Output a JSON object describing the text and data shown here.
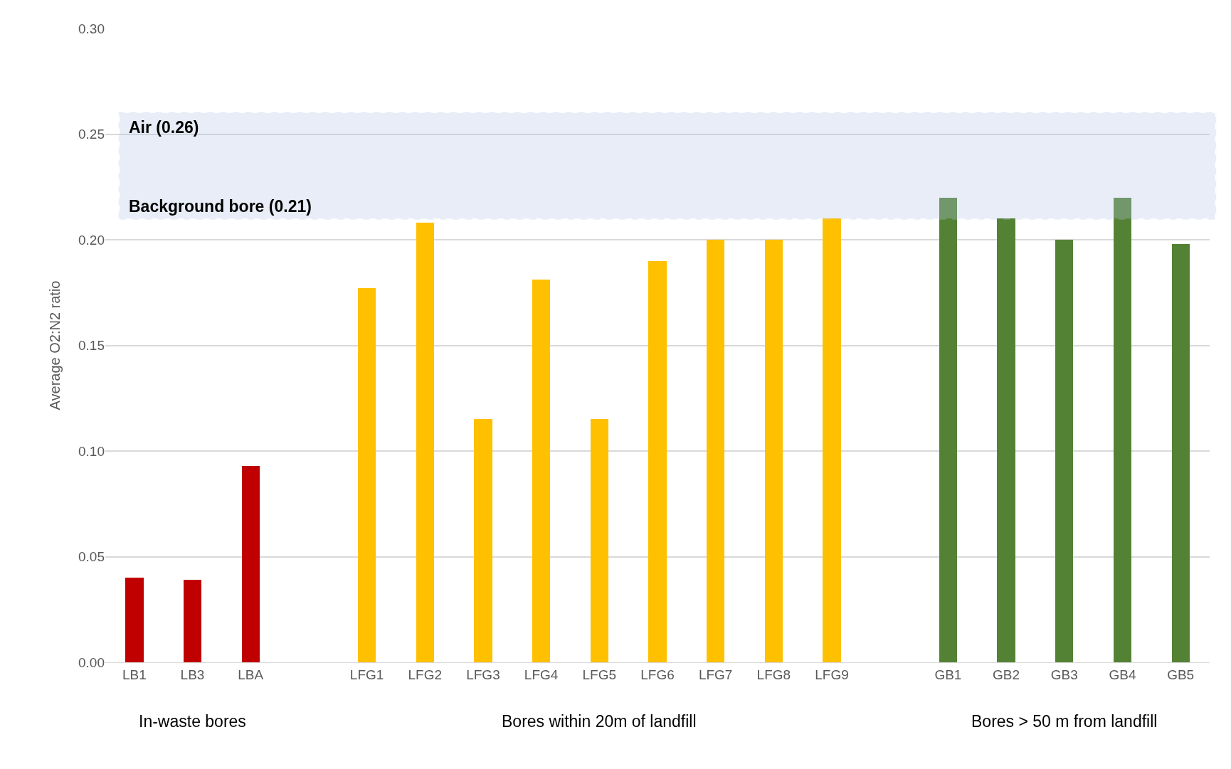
{
  "chart_data": {
    "type": "bar",
    "ylabel": "Average O2:N2 ratio",
    "categories": [
      "LB1",
      "LB3",
      "LBA",
      null,
      "LFG1",
      "LFG2",
      "LFG3",
      "LFG4",
      "LFG5",
      "LFG6",
      "LFG7",
      "LFG8",
      "LFG9",
      null,
      "GB1",
      "GB2",
      "GB3",
      "GB4",
      "GB5"
    ],
    "values": [
      0.04,
      0.039,
      0.093,
      null,
      0.177,
      0.208,
      0.115,
      0.181,
      0.115,
      0.19,
      0.2,
      0.2,
      0.21,
      null,
      0.22,
      0.21,
      0.2,
      0.22,
      0.198
    ],
    "colors": [
      "#c00000",
      "#c00000",
      "#c00000",
      null,
      "#ffc000",
      "#ffc000",
      "#ffc000",
      "#ffc000",
      "#ffc000",
      "#ffc000",
      "#ffc000",
      "#ffc000",
      "#ffc000",
      null,
      "#548235",
      "#548235",
      "#548235",
      "#548235",
      "#548235"
    ],
    "ylim": [
      0,
      0.3
    ],
    "yticks": [
      {
        "value": 0,
        "label": "0.00"
      },
      {
        "value": 0.05,
        "label": "0.05"
      },
      {
        "value": 0.1,
        "label": "0.10"
      },
      {
        "value": 0.15,
        "label": "0.15"
      },
      {
        "value": 0.2,
        "label": "0.20"
      },
      {
        "value": 0.25,
        "label": "0.25"
      },
      {
        "value": 0.3,
        "label": "0.30"
      }
    ],
    "grid": "y",
    "bands": [
      {
        "axis": "y",
        "from": 0.21,
        "to": 0.26,
        "color": "#b4c7e7"
      }
    ],
    "annotations": [
      {
        "text": "Air (0.26)",
        "y": 0.26
      },
      {
        "text": "Background bore (0.21)",
        "y": 0.21
      },
      "In-waste bores",
      "Bores within 20m of landfill",
      "Bores > 50 m from landfill"
    ]
  }
}
